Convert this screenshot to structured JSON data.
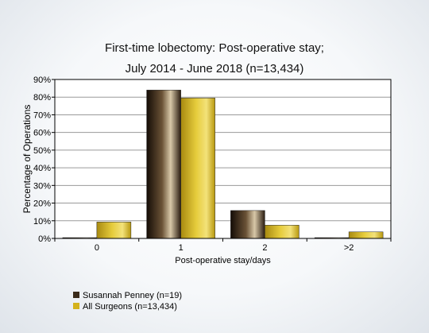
{
  "chart_data": {
    "type": "bar",
    "title": "First-time lobectomy: Post-operative stay;",
    "subtitle": "July 2014 - June 2018 (n=13,434)",
    "xlabel": "Post-operative stay/days",
    "ylabel": "Percentage of Operations",
    "categories": [
      "0",
      "1",
      "2",
      ">2"
    ],
    "ylim": [
      0,
      90
    ],
    "yticks": [
      "0%",
      "10%",
      "20%",
      "30%",
      "40%",
      "50%",
      "60%",
      "70%",
      "80%",
      "90%"
    ],
    "grid": true,
    "legend": "bottom-left",
    "series": [
      {
        "name": "Susannah Penney (n=19)",
        "values": [
          0.2,
          84,
          15.8,
          0.2
        ],
        "color": "#3a2a1a"
      },
      {
        "name": "All Surgeons (n=13,434)",
        "values": [
          9.3,
          79.5,
          7.5,
          3.7
        ],
        "color": "#d4b21c"
      }
    ]
  }
}
